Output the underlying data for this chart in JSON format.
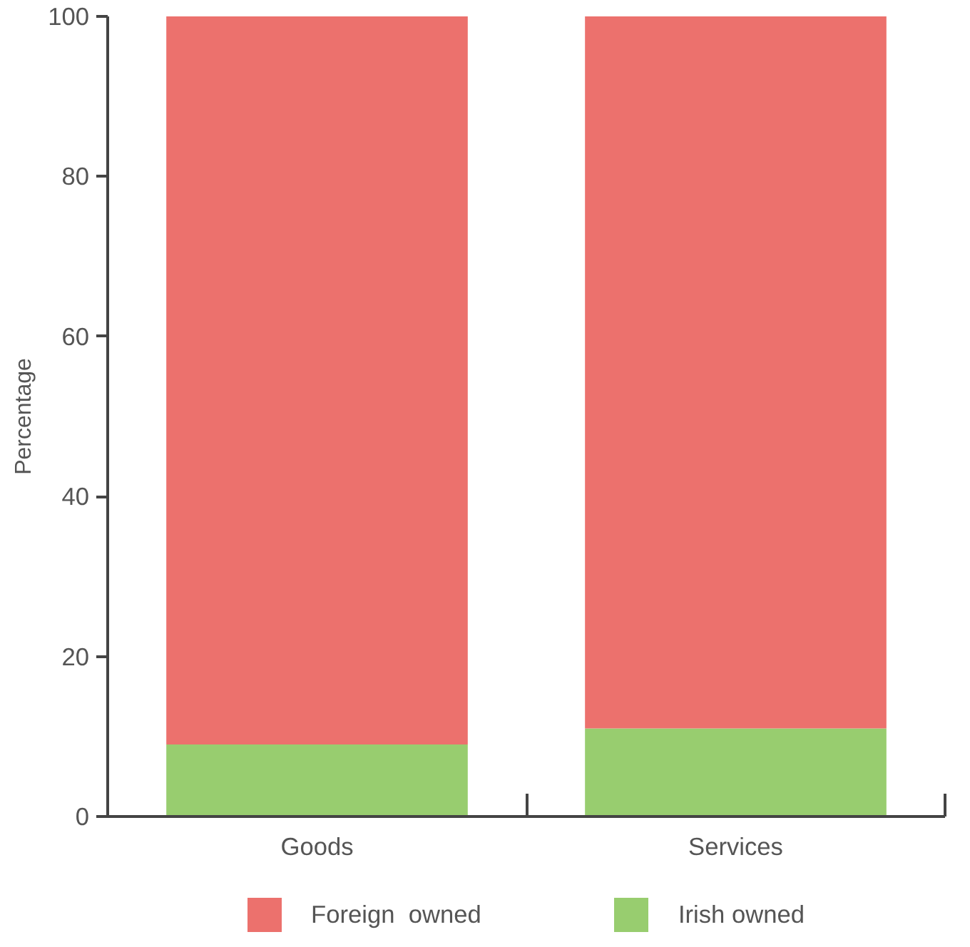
{
  "chart_data": {
    "type": "bar",
    "stacked": true,
    "ylabel": "Percentage",
    "categories": [
      "Goods",
      "Services"
    ],
    "series": [
      {
        "name": "Irish owned",
        "color": "#98cd6f",
        "values": [
          9,
          11
        ]
      },
      {
        "name": "Foreign  owned",
        "color": "#ec716d",
        "values": [
          91,
          89
        ]
      }
    ],
    "ylim": [
      0,
      100
    ],
    "yticks": [
      0,
      20,
      40,
      60,
      80,
      100
    ],
    "grid": false,
    "legend": "bottom"
  }
}
